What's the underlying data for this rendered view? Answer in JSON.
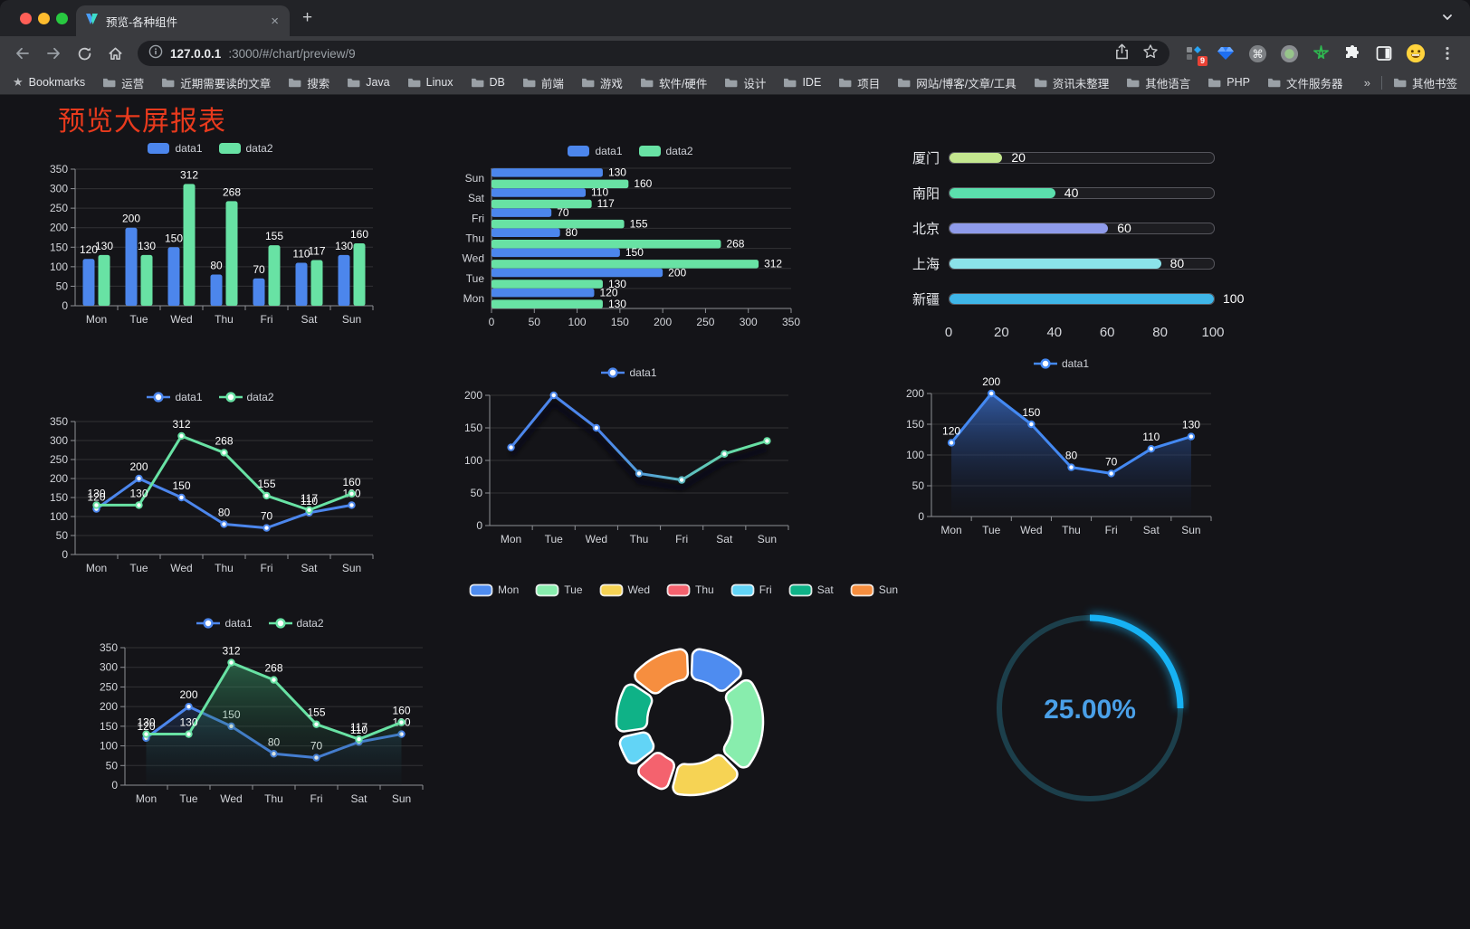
{
  "window": {
    "tab_title": "预览-各种组件",
    "tab_close": "×",
    "new_tab": "+",
    "url_host": "127.0.0.1",
    "url_rest": ":3000/#/chart/preview/9",
    "extension_badge": "9",
    "bookmarks_bar": {
      "root_label": "Bookmarks",
      "folders": [
        "运营",
        "近期需要读的文章",
        "搜索",
        "Java",
        "Linux",
        "DB",
        "前端",
        "游戏",
        "软件/硬件",
        "设计",
        "IDE",
        "项目",
        "网站/博客/文章/工具",
        "资讯未整理",
        "其他语言",
        "PHP",
        "文件服务器"
      ],
      "overflow_chevron": "»",
      "other_bookmarks": "其他书签"
    }
  },
  "page": {
    "title": "预览大屏报表",
    "title_color": "#e83a1d",
    "background": "#141418"
  },
  "chart_data": [
    {
      "id": "bar-grouped",
      "type": "bar",
      "categories": [
        "Mon",
        "Tue",
        "Wed",
        "Thu",
        "Fri",
        "Sat",
        "Sun"
      ],
      "series": [
        {
          "name": "data1",
          "color": "#4C86EC",
          "values": [
            120,
            200,
            150,
            80,
            70,
            110,
            130
          ]
        },
        {
          "name": "data2",
          "color": "#68E2A4",
          "values": [
            130,
            130,
            312,
            268,
            155,
            117,
            160
          ]
        }
      ],
      "ylim": [
        0,
        350
      ],
      "ystep": 50,
      "legend": "rect",
      "grid": true
    },
    {
      "id": "bar-horizontal",
      "type": "hbar",
      "categories": [
        "Mon",
        "Tue",
        "Wed",
        "Thu",
        "Fri",
        "Sat",
        "Sun"
      ],
      "series": [
        {
          "name": "data1",
          "color": "#4C86EC",
          "values": [
            120,
            200,
            150,
            80,
            70,
            110,
            130
          ]
        },
        {
          "name": "data2",
          "color": "#68E2A4",
          "values": [
            130,
            130,
            312,
            268,
            155,
            117,
            160
          ]
        }
      ],
      "xlim": [
        0,
        350
      ],
      "xstep": 50,
      "legend": "rect",
      "grid": true
    },
    {
      "id": "city-progress",
      "type": "progress",
      "rows": [
        {
          "label": "厦门",
          "value": 20,
          "color": "#C4E78F"
        },
        {
          "label": "南阳",
          "value": 40,
          "color": "#5BDFAD"
        },
        {
          "label": "北京",
          "value": 60,
          "color": "#8F9BEA"
        },
        {
          "label": "上海",
          "value": 80,
          "color": "#8BE3EA"
        },
        {
          "label": "新疆",
          "value": 100,
          "color": "#3FB6E8"
        }
      ],
      "max": 100,
      "ticks": [
        0,
        20,
        40,
        60,
        80,
        100
      ]
    },
    {
      "id": "line-two-series",
      "type": "line",
      "categories": [
        "Mon",
        "Tue",
        "Wed",
        "Thu",
        "Fri",
        "Sat",
        "Sun"
      ],
      "series": [
        {
          "name": "data1",
          "color": "#4C86EC",
          "values": [
            120,
            200,
            150,
            80,
            70,
            110,
            130
          ]
        },
        {
          "name": "data2",
          "color": "#68E2A4",
          "values": [
            130,
            130,
            312,
            268,
            155,
            117,
            160
          ]
        }
      ],
      "ylim": [
        0,
        350
      ],
      "ystep": 50,
      "legend": "line",
      "labels": true,
      "grid": true
    },
    {
      "id": "line-gradient",
      "type": "line",
      "categories": [
        "Mon",
        "Tue",
        "Wed",
        "Thu",
        "Fri",
        "Sat",
        "Sun"
      ],
      "series": [
        {
          "name": "data1",
          "color": "#4C86EC",
          "gradient": [
            "#4C86EC",
            "#67E0A3"
          ],
          "values": [
            120,
            200,
            150,
            80,
            70,
            110,
            130
          ]
        }
      ],
      "ylim": [
        0,
        200
      ],
      "ystep": 50,
      "legend": "line",
      "labels": false,
      "shadow": true,
      "grid": true
    },
    {
      "id": "line-area-blue",
      "type": "line",
      "categories": [
        "Mon",
        "Tue",
        "Wed",
        "Thu",
        "Fri",
        "Sat",
        "Sun"
      ],
      "series": [
        {
          "name": "data1",
          "color": "#4489F2",
          "area": [
            "rgba(54,100,182,0.88)",
            "rgba(18,30,58,0.04)"
          ],
          "values": [
            120,
            200,
            150,
            80,
            70,
            110,
            130
          ]
        }
      ],
      "ylim": [
        0,
        200
      ],
      "ystep": 50,
      "legend": "line",
      "labels": true,
      "grid": true
    },
    {
      "id": "area-two-series",
      "type": "line",
      "categories": [
        "Mon",
        "Tue",
        "Wed",
        "Thu",
        "Fri",
        "Sat",
        "Sun"
      ],
      "series": [
        {
          "name": "data1",
          "color": "#4C86EC",
          "area": [
            "rgba(60,110,200,0.60)",
            "rgba(20,32,60,0.05)"
          ],
          "values": [
            120,
            200,
            150,
            80,
            70,
            110,
            130
          ]
        },
        {
          "name": "data2",
          "color": "#68E2A4",
          "area": [
            "rgba(66,180,120,0.55)",
            "rgba(18,48,38,0.05)"
          ],
          "values": [
            130,
            130,
            312,
            268,
            155,
            117,
            160
          ]
        }
      ],
      "ylim": [
        0,
        350
      ],
      "ystep": 50,
      "legend": "line",
      "labels": true,
      "grid": true
    },
    {
      "id": "donut-week",
      "type": "donut",
      "categories": [
        "Mon",
        "Tue",
        "Wed",
        "Thu",
        "Fri",
        "Sat",
        "Sun"
      ],
      "values": [
        120,
        200,
        150,
        80,
        70,
        110,
        130
      ],
      "colors": [
        "#4E8CF0",
        "#88EDAD",
        "#F6D354",
        "#F4626E",
        "#62D4F6",
        "#0FB287",
        "#F68E3F"
      ],
      "legend": "rectB",
      "border_color": "#ffffff"
    },
    {
      "id": "gauge-percent",
      "type": "gauge",
      "value": 25,
      "max": 100,
      "label": "25.00%",
      "arc_color": "#17B2F4",
      "track_color": "#1C3F4B",
      "text_color": "#4AA0E8"
    }
  ]
}
